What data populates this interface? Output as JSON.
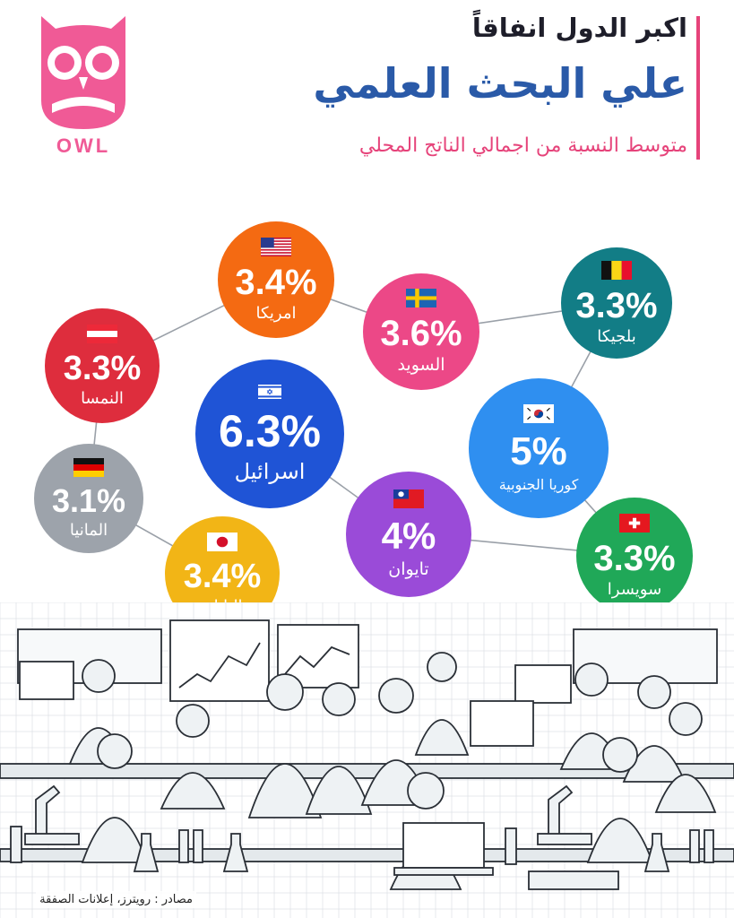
{
  "header": {
    "line1": "اكبر الدول انفاقاً",
    "line2": "علي البحث العلمي",
    "line3": "متوسط النسبة من اجمالي الناتج المحلي"
  },
  "logo": {
    "text": "OWL"
  },
  "chart_data": {
    "type": "bubble",
    "unit": "%",
    "items": [
      {
        "name": "اسرائيل",
        "value": 6.3,
        "label": "6.3%",
        "color": "#1f54d6",
        "flag": "israel-flag-icon"
      },
      {
        "name": "كوريا الجنوبية",
        "value": 5,
        "label": "5%",
        "color": "#2f8ff0",
        "flag": "south-korea-flag-icon"
      },
      {
        "name": "تايوان",
        "value": 4,
        "label": "4%",
        "color": "#9a4bd8",
        "flag": "taiwan-flag-icon"
      },
      {
        "name": "السويد",
        "value": 3.6,
        "label": "3.6%",
        "color": "#ec4887",
        "flag": "sweden-flag-icon"
      },
      {
        "name": "امريكا",
        "value": 3.4,
        "label": "3.4%",
        "color": "#f46a12",
        "flag": "usa-flag-icon"
      },
      {
        "name": "اليابان",
        "value": 3.4,
        "label": "3.4%",
        "color": "#f2b516",
        "flag": "japan-flag-icon"
      },
      {
        "name": "بلجيكا",
        "value": 3.3,
        "label": "3.3%",
        "color": "#127d86",
        "flag": "belgium-flag-icon"
      },
      {
        "name": "النمسا",
        "value": 3.3,
        "label": "3.3%",
        "color": "#de2d3d",
        "flag": "austria-flag-icon"
      },
      {
        "name": "سويسرا",
        "value": 3.3,
        "label": "3.3%",
        "color": "#20a858",
        "flag": "switzerland-flag-icon"
      },
      {
        "name": "المانيا",
        "value": 3.1,
        "label": "3.1%",
        "color": "#9da3ab",
        "flag": "germany-flag-icon"
      }
    ]
  },
  "source": "مصادر : رويترز، إعلانات الصفقة"
}
